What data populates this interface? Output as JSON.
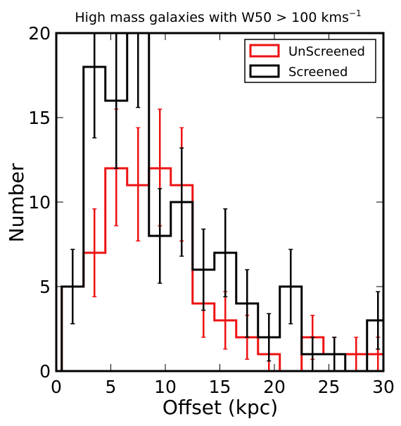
{
  "chart_data": {
    "type": "histogram",
    "title": {
      "main": "High mass galaxies with W50 ",
      "gt": ">",
      "value": " 100 kms",
      "sup": "−1"
    },
    "xlabel": "Offset (kpc)",
    "ylabel": "Number",
    "xlim": [
      0,
      30
    ],
    "ylim": [
      0,
      20
    ],
    "xticks": [
      "0",
      "5",
      "10",
      "15",
      "20",
      "25",
      "30"
    ],
    "yticks": [
      "0",
      "5",
      "10",
      "15",
      "20"
    ],
    "bin_edges": [
      0.5,
      2.5,
      4.5,
      6.5,
      8.5,
      10.5,
      12.5,
      14.5,
      16.5,
      18.5,
      20.5,
      22.5,
      24.5,
      26.5,
      28.5,
      30.5
    ],
    "legend_position": "top-right",
    "series": [
      {
        "name": "UnScreened",
        "color": "#ee1111",
        "counts": [
          5,
          7,
          12,
          11,
          12,
          11,
          4,
          3,
          2,
          1,
          0,
          2,
          1,
          1,
          1
        ],
        "error_low": [
          2.8,
          4.4,
          8.6,
          7.7,
          8.6,
          7.7,
          2.0,
          1.3,
          0.7,
          0.0,
          0.0,
          0.7,
          0.0,
          0.0,
          0.0
        ],
        "error_high": [
          7.2,
          9.6,
          15.5,
          14.4,
          15.5,
          14.4,
          6.0,
          4.7,
          3.3,
          2.0,
          0.0,
          3.3,
          2.0,
          2.0,
          2.0
        ]
      },
      {
        "name": "Screened",
        "color": "#000000",
        "counts": [
          5,
          18,
          16,
          20,
          8,
          10,
          6,
          7,
          4,
          2,
          5,
          1,
          1,
          0,
          3
        ],
        "error_low": [
          2.8,
          13.8,
          12.0,
          15.6,
          5.2,
          6.8,
          3.6,
          4.4,
          2.0,
          0.6,
          2.8,
          0.0,
          0.0,
          0.0,
          1.3
        ],
        "error_high": [
          7.2,
          22.2,
          20.0,
          24.4,
          10.8,
          13.2,
          8.4,
          9.6,
          6.0,
          3.4,
          7.2,
          2.0,
          2.0,
          0.0,
          4.7
        ]
      }
    ]
  }
}
